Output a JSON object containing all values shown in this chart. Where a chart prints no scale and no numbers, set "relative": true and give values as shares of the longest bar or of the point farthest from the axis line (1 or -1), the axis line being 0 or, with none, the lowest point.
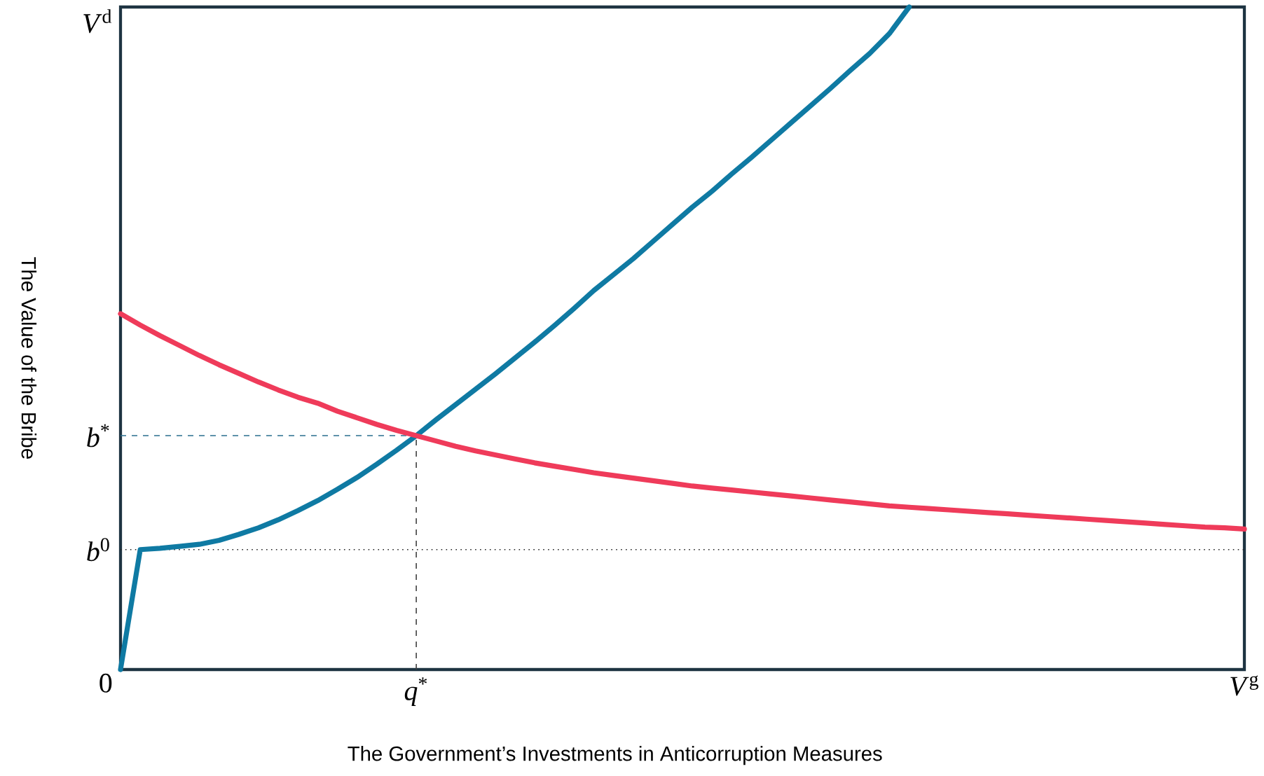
{
  "chart_data": {
    "type": "line",
    "relative": true,
    "xlabel": "The Government’s Investments in Anticorruption Measures",
    "ylabel": "The Value of the Bribe",
    "annotations": [
      "0",
      "*V*$^{d}$",
      "*V*$^{g}$",
      "*q*$^{*}$"
    ],
    "line_style": "solid",
    "categories": [
      null,
      null,
      null,
      null,
      null,
      null,
      null,
      null,
      null,
      null,
      null,
      null,
      null,
      null,
      null,
      null,
      null,
      null,
      null,
      null,
      null,
      null,
      null,
      null,
      null,
      null,
      null,
      null,
      null,
      null,
      null,
      null,
      null,
      null,
      null,
      null,
      null,
      null,
      null,
      null,
      null,
      null,
      null,
      null,
      null,
      null,
      null,
      null,
      null,
      null,
      null,
      null,
      null,
      null,
      null,
      null,
      null,
      null
    ],
    "series": [
      {
        "color": "#0f7aa3",
        "values": [
          0,
          0.181,
          0.183,
          0.186,
          0.189,
          0.195,
          0.204,
          0.214,
          0.226,
          0.24,
          0.255,
          0.272,
          0.29,
          0.31,
          0.331,
          0.353,
          0.377,
          0.4,
          0.423,
          0.446,
          0.47,
          0.494,
          0.519,
          0.545,
          0.572,
          0.596,
          0.62,
          0.646,
          0.672,
          0.698,
          0.722,
          0.748,
          0.773,
          0.799,
          0.825,
          0.851,
          0.877,
          0.904,
          0.93,
          0.96,
          1.0,
          null,
          null,
          null,
          null,
          null,
          null,
          null,
          null,
          null,
          null,
          null,
          null,
          null,
          null,
          null,
          null,
          null
        ]
      },
      {
        "color": "#ef3b5a",
        "values": [
          0.537,
          0.52,
          0.504,
          0.489,
          0.474,
          0.46,
          0.447,
          0.434,
          0.422,
          0.411,
          0.402,
          0.39,
          0.38,
          0.37,
          0.361,
          0.353,
          0.345,
          0.337,
          0.33,
          0.324,
          0.318,
          0.312,
          0.307,
          0.302,
          0.297,
          0.293,
          0.289,
          0.285,
          0.281,
          0.277,
          0.274,
          0.271,
          0.268,
          0.265,
          0.262,
          0.259,
          0.256,
          0.253,
          0.25,
          0.247,
          0.245,
          0.243,
          0.241,
          0.239,
          0.237,
          0.235,
          0.233,
          0.231,
          0.229,
          0.227,
          0.225,
          0.223,
          0.221,
          0.219,
          0.217,
          0.215,
          0.214,
          0.212
        ]
      }
    ],
    "ref_lines": [
      {
        "axis": "y",
        "value": 0.353,
        "line_style": "dashed",
        "color": "#2a6f8f",
        "label": "*b*$^{*}$"
      },
      {
        "axis": "y",
        "value": 0.181,
        "line_style": "dotted",
        "color": "#222222",
        "label": "*b*$^{0}$"
      }
    ]
  }
}
